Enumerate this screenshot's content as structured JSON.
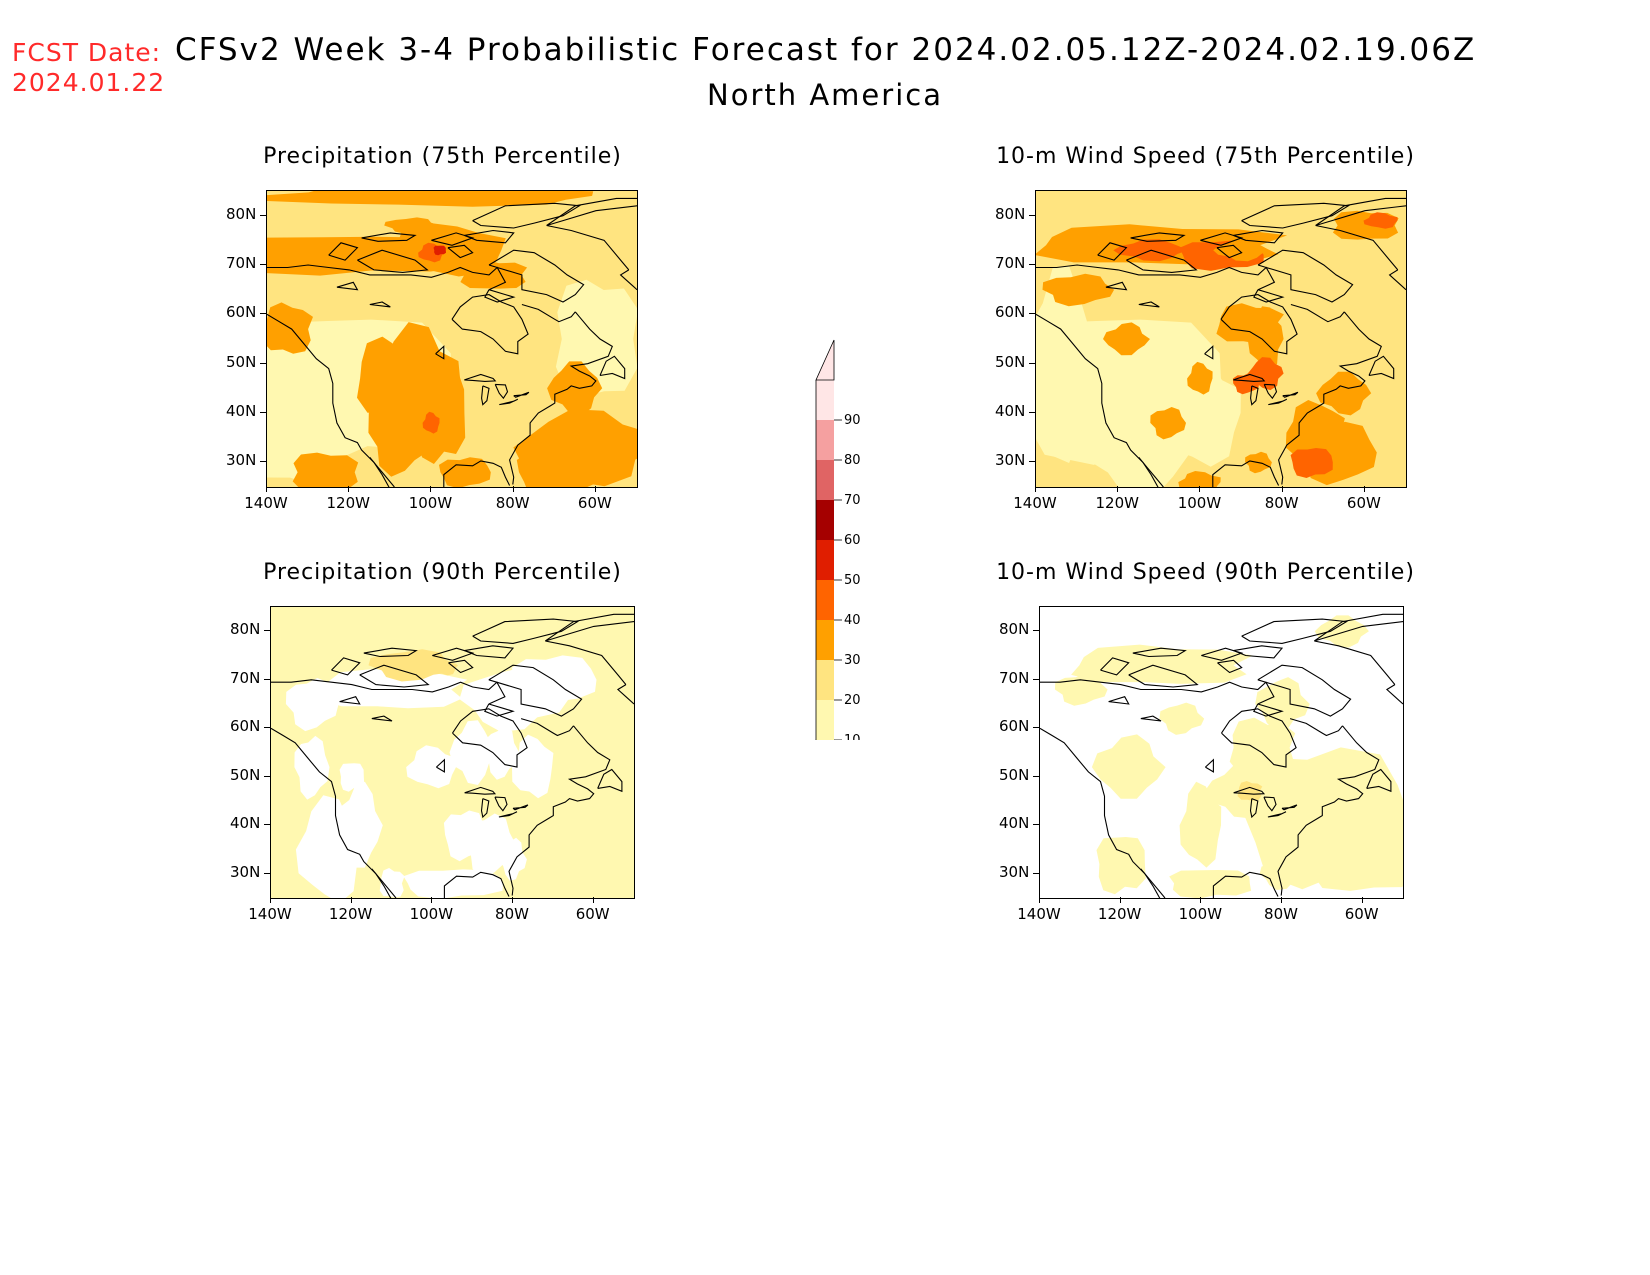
{
  "header": {
    "fcst_label": "FCST Date:",
    "fcst_date": "2024.01.22",
    "title": "CFSv2 Week 3-4 Probabilistic Forecast for 2024.02.05.12Z-2024.02.19.06Z",
    "region": "North America"
  },
  "panels": [
    {
      "id": "precip75",
      "title": "Precipitation (75th Percentile)"
    },
    {
      "id": "wind75",
      "title": "10-m Wind Speed (75th Percentile)"
    },
    {
      "id": "precip90",
      "title": "Precipitation (90th Percentile)"
    },
    {
      "id": "wind90",
      "title": "10-m Wind Speed (90th Percentile)"
    }
  ],
  "axes": {
    "lat_labels": [
      "80N",
      "70N",
      "60N",
      "50N",
      "40N",
      "30N"
    ],
    "lon_labels": [
      "140W",
      "120W",
      "100W",
      "80W",
      "60W"
    ]
  },
  "colorbar": {
    "levels": [
      "10",
      "20",
      "30",
      "40",
      "50",
      "60",
      "70",
      "80",
      "90"
    ],
    "colors": [
      "#fff8b0",
      "#ffe480",
      "#ffa000",
      "#ff6400",
      "#e01e00",
      "#a50000",
      "#e06464",
      "#f5a0a0",
      "#ffe6e6"
    ]
  },
  "map_colors": {
    "background": "#ffffff",
    "coast": "#000000"
  }
}
